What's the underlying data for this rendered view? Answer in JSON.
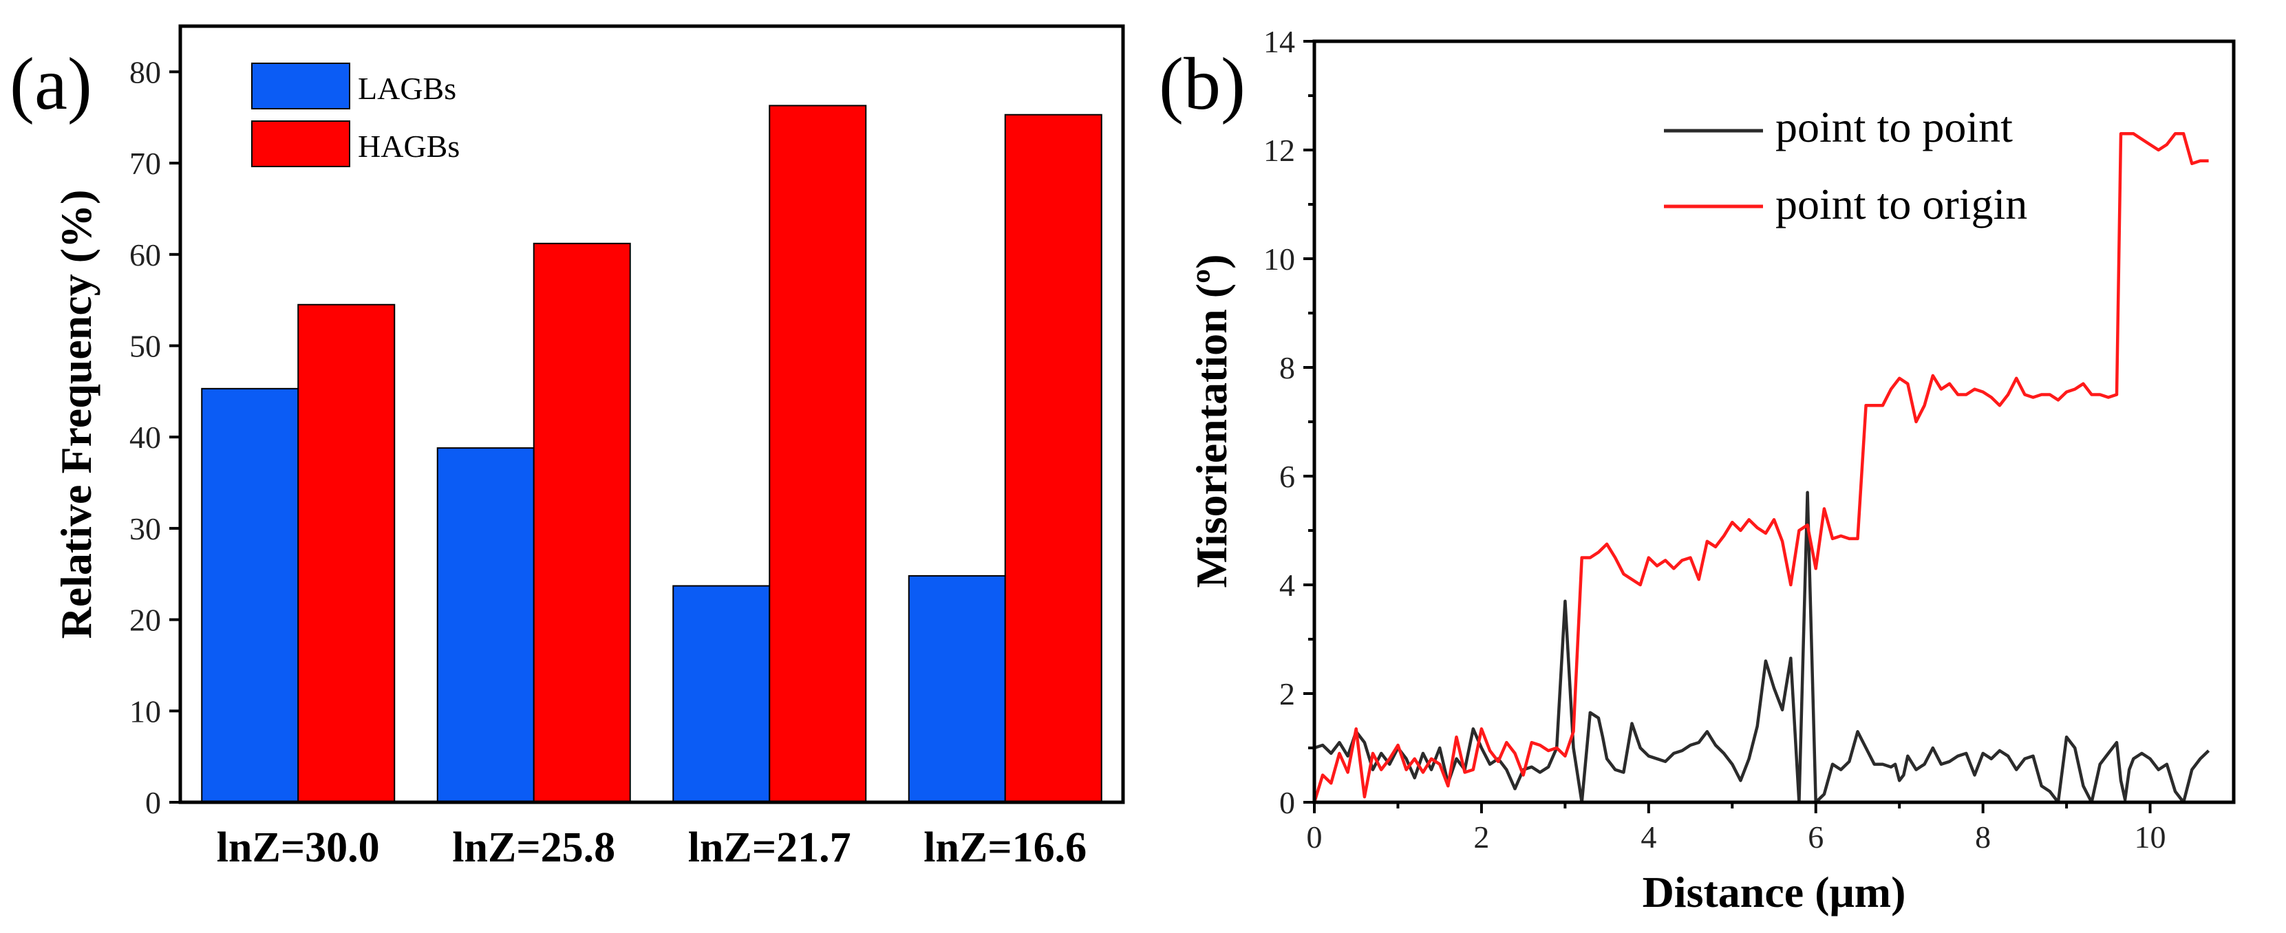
{
  "chart_data": [
    {
      "panel": "(a)",
      "type": "bar",
      "categories": [
        "lnZ=30.0",
        "lnZ=25.8",
        "lnZ=21.7",
        "lnZ=16.6"
      ],
      "series": [
        {
          "name": "LAGBs",
          "color": "#0b5cf5",
          "values": [
            45.3,
            38.8,
            23.7,
            24.8
          ]
        },
        {
          "name": "HAGBs",
          "color": "#ff0000",
          "values": [
            54.5,
            61.2,
            76.3,
            75.3
          ]
        }
      ],
      "ylabel": "Relative Frequency (%)",
      "xlabel": "",
      "ylim": [
        0,
        85
      ],
      "yticks": [
        0,
        10,
        20,
        30,
        40,
        50,
        60,
        70,
        80
      ],
      "legend": "top-left"
    },
    {
      "panel": "(b)",
      "type": "line",
      "xlabel": "Distance (μm)",
      "ylabel": "Misorientation (º)",
      "xlim": [
        0,
        11
      ],
      "ylim": [
        0,
        14
      ],
      "xticks": [
        0,
        2,
        4,
        6,
        8,
        10
      ],
      "yticks": [
        0,
        2,
        4,
        6,
        8,
        10,
        12,
        14
      ],
      "legend": "top-right",
      "series": [
        {
          "name": "point to point",
          "color": "#2b2b2b",
          "x": [
            0,
            0.1,
            0.2,
            0.3,
            0.4,
            0.5,
            0.6,
            0.7,
            0.8,
            0.9,
            1.0,
            1.1,
            1.2,
            1.3,
            1.4,
            1.5,
            1.6,
            1.7,
            1.8,
            1.9,
            2.0,
            2.1,
            2.2,
            2.3,
            2.4,
            2.5,
            2.6,
            2.7,
            2.8,
            2.9,
            3.0,
            3.1,
            3.2,
            3.3,
            3.4,
            3.45,
            3.5,
            3.6,
            3.7,
            3.8,
            3.9,
            4.0,
            4.1,
            4.2,
            4.3,
            4.4,
            4.5,
            4.6,
            4.7,
            4.8,
            4.9,
            5.0,
            5.1,
            5.2,
            5.3,
            5.4,
            5.5,
            5.6,
            5.7,
            5.8,
            5.9,
            6.0,
            6.1,
            6.2,
            6.3,
            6.4,
            6.5,
            6.6,
            6.7,
            6.8,
            6.9,
            6.95,
            7.0,
            7.05,
            7.1,
            7.2,
            7.3,
            7.4,
            7.5,
            7.6,
            7.7,
            7.8,
            7.9,
            8.0,
            8.1,
            8.2,
            8.3,
            8.4,
            8.5,
            8.6,
            8.7,
            8.8,
            8.9,
            9.0,
            9.1,
            9.2,
            9.3,
            9.4,
            9.5,
            9.6,
            9.65,
            9.7,
            9.75,
            9.8,
            9.9,
            10.0,
            10.1,
            10.2,
            10.3,
            10.4,
            10.5,
            10.6,
            10.7
          ],
          "y": [
            1.0,
            1.05,
            0.9,
            1.1,
            0.85,
            1.3,
            1.1,
            0.6,
            0.9,
            0.7,
            1.0,
            0.8,
            0.45,
            0.9,
            0.6,
            1.0,
            0.35,
            0.8,
            0.6,
            1.35,
            1.0,
            0.7,
            0.8,
            0.6,
            0.25,
            0.6,
            0.65,
            0.55,
            0.65,
            1.0,
            3.7,
            1.0,
            0.0,
            1.65,
            1.55,
            1.2,
            0.8,
            0.6,
            0.55,
            1.45,
            1.0,
            0.85,
            0.8,
            0.75,
            0.9,
            0.95,
            1.05,
            1.1,
            1.3,
            1.05,
            0.9,
            0.7,
            0.4,
            0.8,
            1.4,
            2.6,
            2.1,
            1.7,
            2.65,
            0.0,
            5.7,
            0.0,
            0.15,
            0.7,
            0.6,
            0.75,
            1.3,
            1.0,
            0.7,
            0.7,
            0.65,
            0.7,
            0.4,
            0.5,
            0.85,
            0.6,
            0.7,
            1.0,
            0.7,
            0.75,
            0.85,
            0.9,
            0.5,
            0.9,
            0.8,
            0.95,
            0.85,
            0.6,
            0.8,
            0.85,
            0.3,
            0.2,
            0.0,
            1.2,
            1.0,
            0.3,
            0.0,
            0.7,
            0.9,
            1.1,
            0.4,
            0.05,
            0.6,
            0.8,
            0.9,
            0.8,
            0.6,
            0.7,
            0.2,
            0.0,
            0.6,
            0.8,
            0.95
          ]
        },
        {
          "name": "point to origin",
          "color": "#ff1a1a",
          "x": [
            0,
            0.1,
            0.2,
            0.3,
            0.4,
            0.5,
            0.6,
            0.7,
            0.8,
            0.9,
            1.0,
            1.1,
            1.2,
            1.3,
            1.4,
            1.5,
            1.6,
            1.7,
            1.8,
            1.9,
            2.0,
            2.1,
            2.2,
            2.3,
            2.4,
            2.5,
            2.6,
            2.7,
            2.8,
            2.9,
            3.0,
            3.1,
            3.2,
            3.3,
            3.4,
            3.5,
            3.6,
            3.7,
            3.8,
            3.9,
            4.0,
            4.1,
            4.2,
            4.3,
            4.4,
            4.5,
            4.6,
            4.7,
            4.8,
            4.9,
            5.0,
            5.1,
            5.2,
            5.3,
            5.4,
            5.5,
            5.6,
            5.7,
            5.8,
            5.9,
            6.0,
            6.1,
            6.2,
            6.3,
            6.4,
            6.5,
            6.6,
            6.7,
            6.8,
            6.9,
            7.0,
            7.1,
            7.2,
            7.3,
            7.4,
            7.5,
            7.6,
            7.7,
            7.8,
            7.9,
            8.0,
            8.1,
            8.2,
            8.3,
            8.4,
            8.5,
            8.6,
            8.7,
            8.8,
            8.9,
            9.0,
            9.1,
            9.2,
            9.3,
            9.4,
            9.5,
            9.6,
            9.65,
            9.7,
            9.8,
            9.9,
            10.0,
            10.1,
            10.2,
            10.3,
            10.4,
            10.5,
            10.6,
            10.7
          ],
          "y": [
            0.0,
            0.5,
            0.35,
            0.9,
            0.55,
            1.35,
            0.1,
            0.9,
            0.6,
            0.8,
            1.05,
            0.6,
            0.8,
            0.55,
            0.8,
            0.7,
            0.3,
            1.2,
            0.55,
            0.6,
            1.35,
            0.95,
            0.75,
            1.1,
            0.9,
            0.5,
            1.1,
            1.05,
            0.95,
            1.0,
            0.85,
            1.3,
            4.5,
            4.5,
            4.6,
            4.75,
            4.5,
            4.2,
            4.1,
            4.0,
            4.5,
            4.35,
            4.45,
            4.3,
            4.45,
            4.5,
            4.1,
            4.8,
            4.7,
            4.9,
            5.15,
            5.0,
            5.2,
            5.05,
            4.95,
            5.2,
            4.8,
            4.0,
            5.0,
            5.1,
            4.3,
            5.4,
            4.85,
            4.9,
            4.85,
            4.85,
            7.3,
            7.3,
            7.3,
            7.6,
            7.8,
            7.7,
            7.0,
            7.3,
            7.85,
            7.6,
            7.7,
            7.5,
            7.5,
            7.6,
            7.55,
            7.45,
            7.3,
            7.5,
            7.8,
            7.5,
            7.45,
            7.5,
            7.5,
            7.4,
            7.55,
            7.6,
            7.7,
            7.5,
            7.5,
            7.45,
            7.5,
            12.3,
            12.3,
            12.3,
            12.2,
            12.1,
            12.0,
            12.1,
            12.3,
            12.3,
            11.75,
            11.8,
            11.8
          ]
        }
      ]
    }
  ]
}
